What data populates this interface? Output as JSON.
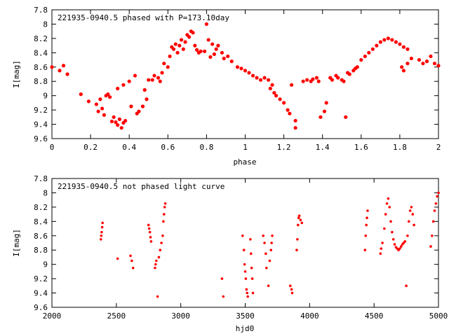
{
  "chart_data": [
    {
      "type": "scatter",
      "title": "221935-0940.5 phased with P=173.10day",
      "xlabel": "phase",
      "ylabel": "I[mag]",
      "xlim": [
        0,
        2
      ],
      "ylim": [
        9.6,
        7.8
      ],
      "y_inverted": true,
      "grid": false,
      "legend": "none",
      "marker_color": "#ff0000",
      "x_ticks": [
        "0",
        "0.2",
        "0.4",
        "0.6",
        "0.8",
        "1",
        "1.2",
        "1.4",
        "1.6",
        "1.8",
        "2"
      ],
      "y_ticks": [
        "7.8",
        "8",
        "8.2",
        "8.4",
        "8.6",
        "8.8",
        "9",
        "9.2",
        "9.4",
        "9.6"
      ],
      "series": [
        {
          "points": [
            [
              0.0,
              8.6
            ],
            [
              0.04,
              8.65
            ],
            [
              0.06,
              8.58
            ],
            [
              0.08,
              8.7
            ],
            [
              0.15,
              8.98
            ],
            [
              0.19,
              9.08
            ],
            [
              0.23,
              9.12
            ],
            [
              0.24,
              9.22
            ],
            [
              0.25,
              9.05
            ],
            [
              0.26,
              9.18
            ],
            [
              0.27,
              9.27
            ],
            [
              0.28,
              9.0
            ],
            [
              0.29,
              8.98
            ],
            [
              0.3,
              9.02
            ],
            [
              0.31,
              9.36
            ],
            [
              0.32,
              9.3
            ],
            [
              0.33,
              9.37
            ],
            [
              0.34,
              9.41
            ],
            [
              0.35,
              9.33
            ],
            [
              0.36,
              9.45
            ],
            [
              0.37,
              9.38
            ],
            [
              0.38,
              9.35
            ],
            [
              0.34,
              8.9
            ],
            [
              0.37,
              8.85
            ],
            [
              0.4,
              8.8
            ],
            [
              0.41,
              9.15
            ],
            [
              0.43,
              8.72
            ],
            [
              0.44,
              9.25
            ],
            [
              0.45,
              9.22
            ],
            [
              0.47,
              9.15
            ],
            [
              0.48,
              8.92
            ],
            [
              0.49,
              9.05
            ],
            [
              0.5,
              8.78
            ],
            [
              0.52,
              8.78
            ],
            [
              0.53,
              8.72
            ],
            [
              0.55,
              8.75
            ],
            [
              0.56,
              8.8
            ],
            [
              0.57,
              8.68
            ],
            [
              0.58,
              8.55
            ],
            [
              0.6,
              8.6
            ],
            [
              0.61,
              8.45
            ],
            [
              0.62,
              8.32
            ],
            [
              0.63,
              8.35
            ],
            [
              0.64,
              8.28
            ],
            [
              0.65,
              8.4
            ],
            [
              0.66,
              8.3
            ],
            [
              0.67,
              8.22
            ],
            [
              0.68,
              8.35
            ],
            [
              0.69,
              8.25
            ],
            [
              0.7,
              8.15
            ],
            [
              0.71,
              8.18
            ],
            [
              0.72,
              8.1
            ],
            [
              0.73,
              8.12
            ],
            [
              0.74,
              8.3
            ],
            [
              0.75,
              8.36
            ],
            [
              0.76,
              8.4
            ],
            [
              0.77,
              8.38
            ],
            [
              0.79,
              8.38
            ],
            [
              0.8,
              8.0
            ],
            [
              0.81,
              8.22
            ],
            [
              0.82,
              8.46
            ],
            [
              0.83,
              8.28
            ],
            [
              0.84,
              8.42
            ],
            [
              0.85,
              8.35
            ],
            [
              0.86,
              8.3
            ],
            [
              0.88,
              8.4
            ],
            [
              0.89,
              8.48
            ],
            [
              0.91,
              8.45
            ],
            [
              0.93,
              8.52
            ],
            [
              0.96,
              8.6
            ],
            [
              0.98,
              8.62
            ],
            [
              1.0,
              8.65
            ],
            [
              1.02,
              8.68
            ],
            [
              1.04,
              8.72
            ],
            [
              1.06,
              8.75
            ],
            [
              1.08,
              8.78
            ],
            [
              1.1,
              8.75
            ],
            [
              1.12,
              8.78
            ],
            [
              1.13,
              8.9
            ],
            [
              1.14,
              8.85
            ],
            [
              1.15,
              8.96
            ],
            [
              1.16,
              9.0
            ],
            [
              1.18,
              9.05
            ],
            [
              1.2,
              9.1
            ],
            [
              1.22,
              9.2
            ],
            [
              1.23,
              9.25
            ],
            [
              1.24,
              8.85
            ],
            [
              1.26,
              9.35
            ],
            [
              1.26,
              9.45
            ],
            [
              1.3,
              8.8
            ],
            [
              1.32,
              8.78
            ],
            [
              1.34,
              8.8
            ],
            [
              1.35,
              8.77
            ],
            [
              1.37,
              8.75
            ],
            [
              1.38,
              8.8
            ],
            [
              1.39,
              9.3
            ],
            [
              1.41,
              9.22
            ],
            [
              1.42,
              9.1
            ],
            [
              1.44,
              8.75
            ],
            [
              1.45,
              8.78
            ],
            [
              1.47,
              8.72
            ],
            [
              1.48,
              8.75
            ],
            [
              1.5,
              8.78
            ],
            [
              1.51,
              8.8
            ],
            [
              1.52,
              9.3
            ],
            [
              1.53,
              8.68
            ],
            [
              1.54,
              8.7
            ],
            [
              1.56,
              8.65
            ],
            [
              1.57,
              8.62
            ],
            [
              1.58,
              8.6
            ],
            [
              1.6,
              8.5
            ],
            [
              1.62,
              8.45
            ],
            [
              1.64,
              8.4
            ],
            [
              1.66,
              8.35
            ],
            [
              1.68,
              8.3
            ],
            [
              1.7,
              8.25
            ],
            [
              1.72,
              8.22
            ],
            [
              1.74,
              8.2
            ],
            [
              1.76,
              8.22
            ],
            [
              1.78,
              8.25
            ],
            [
              1.8,
              8.28
            ],
            [
              1.82,
              8.32
            ],
            [
              1.84,
              8.35
            ],
            [
              1.81,
              8.6
            ],
            [
              1.82,
              8.65
            ],
            [
              1.84,
              8.55
            ],
            [
              1.86,
              8.48
            ],
            [
              1.9,
              8.5
            ],
            [
              1.92,
              8.55
            ],
            [
              1.94,
              8.52
            ],
            [
              1.96,
              8.45
            ],
            [
              1.98,
              8.55
            ],
            [
              2.0,
              8.58
            ]
          ]
        }
      ]
    },
    {
      "type": "scatter",
      "title": "221935-0940.5 not phased light curve",
      "xlabel": "hjd0",
      "ylabel": "I[mag]",
      "xlim": [
        2000,
        5000
      ],
      "ylim": [
        9.6,
        7.8
      ],
      "y_inverted": true,
      "grid": false,
      "legend": "none",
      "marker_color": "#ff0000",
      "x_ticks": [
        "2000",
        "2500",
        "3000",
        "3500",
        "4000",
        "4500",
        "5000"
      ],
      "y_ticks": [
        "7.8",
        "8",
        "8.2",
        "8.4",
        "8.6",
        "8.8",
        "9",
        "9.2",
        "9.4",
        "9.6"
      ],
      "series": [
        {
          "points": [
            [
              2380,
              8.65
            ],
            [
              2383,
              8.6
            ],
            [
              2386,
              8.55
            ],
            [
              2390,
              8.48
            ],
            [
              2393,
              8.42
            ],
            [
              2510,
              8.92
            ],
            [
              2610,
              8.88
            ],
            [
              2620,
              8.95
            ],
            [
              2630,
              9.05
            ],
            [
              2750,
              8.45
            ],
            [
              2755,
              8.5
            ],
            [
              2760,
              8.55
            ],
            [
              2765,
              8.62
            ],
            [
              2770,
              8.68
            ],
            [
              2800,
              9.05
            ],
            [
              2805,
              9.0
            ],
            [
              2810,
              8.95
            ],
            [
              2820,
              9.45
            ],
            [
              2830,
              8.9
            ],
            [
              2840,
              8.8
            ],
            [
              2850,
              8.7
            ],
            [
              2860,
              8.6
            ],
            [
              2865,
              8.4
            ],
            [
              2870,
              8.3
            ],
            [
              2875,
              8.2
            ],
            [
              2880,
              8.15
            ],
            [
              3320,
              9.2
            ],
            [
              3330,
              9.45
            ],
            [
              3480,
              8.6
            ],
            [
              3490,
              8.8
            ],
            [
              3495,
              9.0
            ],
            [
              3500,
              9.1
            ],
            [
              3505,
              9.2
            ],
            [
              3510,
              9.35
            ],
            [
              3515,
              9.4
            ],
            [
              3520,
              9.45
            ],
            [
              3540,
              8.65
            ],
            [
              3545,
              8.85
            ],
            [
              3550,
              9.05
            ],
            [
              3555,
              9.2
            ],
            [
              3560,
              9.4
            ],
            [
              3640,
              8.6
            ],
            [
              3650,
              8.7
            ],
            [
              3660,
              8.85
            ],
            [
              3665,
              9.05
            ],
            [
              3680,
              9.3
            ],
            [
              3690,
              8.95
            ],
            [
              3700,
              8.8
            ],
            [
              3705,
              8.7
            ],
            [
              3710,
              8.6
            ],
            [
              3850,
              9.3
            ],
            [
              3860,
              9.35
            ],
            [
              3865,
              9.4
            ],
            [
              3900,
              8.8
            ],
            [
              3905,
              8.65
            ],
            [
              3910,
              8.45
            ],
            [
              3915,
              8.35
            ],
            [
              3920,
              8.32
            ],
            [
              3930,
              8.38
            ],
            [
              3940,
              8.42
            ],
            [
              4430,
              8.8
            ],
            [
              4435,
              8.6
            ],
            [
              4440,
              8.45
            ],
            [
              4445,
              8.35
            ],
            [
              4450,
              8.25
            ],
            [
              4550,
              8.85
            ],
            [
              4555,
              8.78
            ],
            [
              4565,
              8.7
            ],
            [
              4580,
              8.5
            ],
            [
              4590,
              8.3
            ],
            [
              4600,
              8.15
            ],
            [
              4610,
              8.08
            ],
            [
              4620,
              8.2
            ],
            [
              4630,
              8.4
            ],
            [
              4640,
              8.55
            ],
            [
              4650,
              8.65
            ],
            [
              4660,
              8.72
            ],
            [
              4670,
              8.76
            ],
            [
              4680,
              8.78
            ],
            [
              4690,
              8.8
            ],
            [
              4700,
              8.78
            ],
            [
              4710,
              8.75
            ],
            [
              4720,
              8.72
            ],
            [
              4730,
              8.7
            ],
            [
              4740,
              8.68
            ],
            [
              4750,
              9.3
            ],
            [
              4760,
              8.6
            ],
            [
              4770,
              8.4
            ],
            [
              4780,
              8.25
            ],
            [
              4790,
              8.2
            ],
            [
              4800,
              8.3
            ],
            [
              4810,
              8.45
            ],
            [
              4940,
              8.75
            ],
            [
              4950,
              8.6
            ],
            [
              4960,
              8.4
            ],
            [
              4970,
              8.25
            ],
            [
              4980,
              8.15
            ],
            [
              4990,
              8.05
            ],
            [
              5000,
              8.0
            ]
          ]
        }
      ]
    }
  ]
}
